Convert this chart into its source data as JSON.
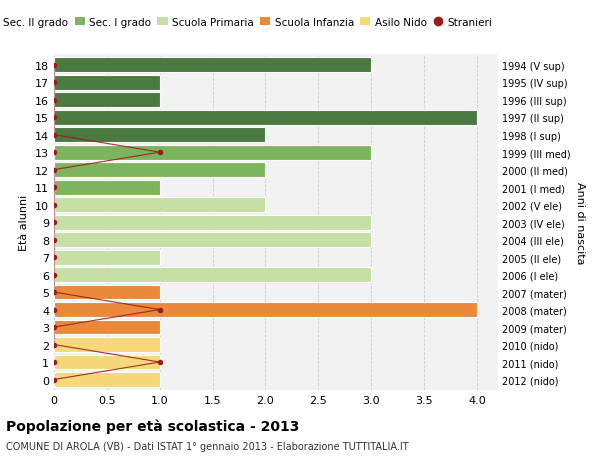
{
  "ages": [
    18,
    17,
    16,
    15,
    14,
    13,
    12,
    11,
    10,
    9,
    8,
    7,
    6,
    5,
    4,
    3,
    2,
    1,
    0
  ],
  "right_labels": [
    "1994 (V sup)",
    "1995 (IV sup)",
    "1996 (III sup)",
    "1997 (II sup)",
    "1998 (I sup)",
    "1999 (III med)",
    "2000 (II med)",
    "2001 (I med)",
    "2002 (V ele)",
    "2003 (IV ele)",
    "2004 (III ele)",
    "2005 (II ele)",
    "2006 (I ele)",
    "2007 (mater)",
    "2008 (mater)",
    "2009 (mater)",
    "2010 (nido)",
    "2011 (nido)",
    "2012 (nido)"
  ],
  "bar_values": [
    3,
    1,
    1,
    4,
    2,
    3,
    2,
    1,
    2,
    3,
    3,
    1,
    3,
    1,
    4,
    1,
    1,
    1,
    1
  ],
  "bar_colors": [
    "#4a7a40",
    "#4a7a40",
    "#4a7a40",
    "#4a7a40",
    "#4a7a40",
    "#7db55e",
    "#7db55e",
    "#7db55e",
    "#c5dfa5",
    "#c5dfa5",
    "#c5dfa5",
    "#c5dfa5",
    "#c5dfa5",
    "#e8893c",
    "#e8893c",
    "#e8893c",
    "#f5d87a",
    "#f5d87a",
    "#f5d87a"
  ],
  "stranieri_x": [
    0,
    0,
    0,
    0,
    0,
    1,
    0,
    0,
    0,
    0,
    0,
    0,
    0,
    0,
    1,
    0,
    0,
    1,
    0
  ],
  "color_sec2": "#4a7a40",
  "color_sec1": "#7db55e",
  "color_prim": "#c5dfa5",
  "color_inf": "#e8893c",
  "color_nido": "#f5d87a",
  "color_stranieri": "#9b1c1c",
  "title": "Popolazione per età scolastica - 2013",
  "subtitle": "COMUNE DI AROLA (VB) - Dati ISTAT 1° gennaio 2013 - Elaborazione TUTTITALIA.IT",
  "ylabel": "Età alunni",
  "right_axis_label": "Anni di nascita",
  "xlim": [
    0,
    4.2
  ],
  "xticks": [
    0,
    0.5,
    1.0,
    1.5,
    2.0,
    2.5,
    3.0,
    3.5,
    4.0
  ],
  "xtick_labels": [
    "0",
    "0.5",
    "1.0",
    "1.5",
    "2.0",
    "2.5",
    "3.0",
    "3.5",
    "4.0"
  ],
  "bar_height": 0.85,
  "legend_labels": [
    "Sec. II grado",
    "Sec. I grado",
    "Scuola Primaria",
    "Scuola Infanzia",
    "Asilo Nido",
    "Stranieri"
  ],
  "legend_colors": [
    "#4a7a40",
    "#7db55e",
    "#c5dfa5",
    "#e8893c",
    "#f5d87a",
    "#9b1c1c"
  ],
  "bg_color": "#f2f2f2",
  "grid_color": "#cccccc"
}
